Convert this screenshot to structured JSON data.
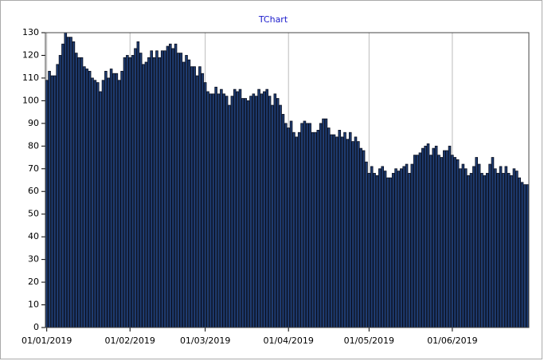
{
  "chart_data": {
    "type": "bar",
    "title": "TChart",
    "categories": [
      "01/01/2019",
      null,
      null,
      null,
      null,
      null,
      null,
      null,
      null,
      null,
      null,
      null,
      null,
      null,
      null,
      null,
      null,
      null,
      null,
      null,
      null,
      null,
      null,
      null,
      null,
      null,
      null,
      null,
      null,
      null,
      null,
      "01/02/2019",
      null,
      null,
      null,
      null,
      null,
      null,
      null,
      null,
      null,
      null,
      null,
      null,
      null,
      null,
      null,
      null,
      null,
      null,
      null,
      null,
      null,
      null,
      null,
      null,
      null,
      null,
      null,
      "01/03/2019",
      null,
      null,
      null,
      null,
      null,
      null,
      null,
      null,
      null,
      null,
      null,
      null,
      null,
      null,
      null,
      null,
      null,
      null,
      null,
      null,
      null,
      null,
      null,
      null,
      null,
      null,
      null,
      null,
      null,
      null,
      "01/04/2019",
      null,
      null,
      null,
      null,
      null,
      null,
      null,
      null,
      null,
      null,
      null,
      null,
      null,
      null,
      null,
      null,
      null,
      null,
      null,
      null,
      null,
      null,
      null,
      null,
      null,
      null,
      null,
      null,
      null,
      "01/05/2019",
      null,
      null,
      null,
      null,
      null,
      null,
      null,
      null,
      null,
      null,
      null,
      null,
      null,
      null,
      null,
      null,
      null,
      null,
      null,
      null,
      null,
      null,
      null,
      null,
      null,
      null,
      null,
      null,
      null,
      null,
      "01/06/2019",
      null,
      null,
      null,
      null,
      null,
      null,
      null,
      null,
      null,
      null,
      null,
      null,
      null,
      null,
      null,
      null,
      null,
      null,
      null,
      null,
      null,
      null,
      null,
      null,
      null,
      null,
      null,
      null
    ],
    "values": [
      109,
      113,
      111,
      111,
      116,
      120,
      125,
      130,
      128,
      128,
      126,
      121,
      119,
      119,
      115,
      114,
      113,
      110,
      109,
      108,
      104,
      109,
      113,
      110,
      114,
      112,
      112,
      109,
      113,
      119,
      120,
      119,
      120,
      123,
      126,
      121,
      116,
      117,
      119,
      122,
      119,
      122,
      119,
      122,
      122,
      124,
      125,
      123,
      125,
      121,
      121,
      117,
      120,
      118,
      115,
      115,
      111,
      115,
      112,
      108,
      104,
      103,
      103,
      106,
      103,
      105,
      103,
      102,
      98,
      102,
      105,
      104,
      105,
      101,
      101,
      100,
      102,
      103,
      102,
      105,
      103,
      104,
      105,
      102,
      98,
      103,
      101,
      98,
      94,
      90,
      88,
      91,
      86,
      84,
      86,
      90,
      91,
      90,
      90,
      86,
      86,
      87,
      90,
      92,
      92,
      88,
      85,
      85,
      84,
      87,
      84,
      86,
      83,
      86,
      82,
      84,
      82,
      79,
      78,
      73,
      68,
      71,
      68,
      67,
      70,
      71,
      69,
      66,
      66,
      68,
      70,
      69,
      70,
      71,
      72,
      68,
      72,
      76,
      76,
      77,
      79,
      80,
      81,
      76,
      79,
      80,
      76,
      75,
      78,
      78,
      80,
      76,
      75,
      74,
      70,
      72,
      70,
      67,
      68,
      71,
      75,
      72,
      68,
      67,
      68,
      72,
      75,
      70,
      68,
      71,
      68,
      71,
      68,
      67,
      70,
      69,
      66,
      64,
      63,
      63
    ],
    "color": "#1f3d73",
    "ylim": [
      0,
      130
    ],
    "yticks": [
      0,
      10,
      20,
      30,
      40,
      50,
      60,
      70,
      80,
      90,
      100,
      110,
      120,
      130
    ],
    "xgrid": true
  }
}
